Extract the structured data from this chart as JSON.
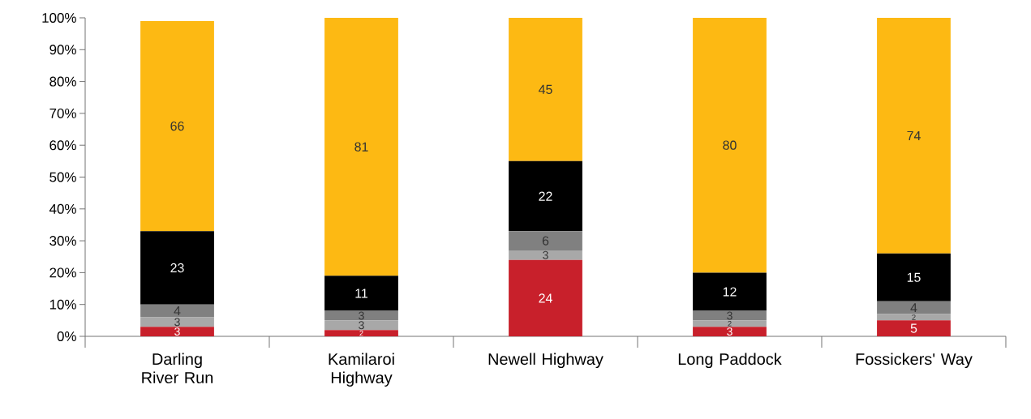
{
  "chart_data": {
    "type": "bar",
    "stacked": true,
    "data_labels": true,
    "categories": [
      "Darling River Run",
      "Kamilaroi Highway",
      "Newell Highway",
      "Long Paddock",
      "Fossickers' Way"
    ],
    "series": [
      {
        "color": "#c8202b",
        "values": [
          3,
          2,
          24,
          3,
          5
        ]
      },
      {
        "color": "#a8a8a8",
        "values": [
          3,
          3,
          3,
          2,
          2
        ]
      },
      {
        "color": "#808080",
        "values": [
          4,
          3,
          6,
          3,
          4
        ]
      },
      {
        "color": "#000000",
        "values": [
          23,
          11,
          22,
          12,
          15
        ]
      },
      {
        "color": "#fdb913",
        "values": [
          66,
          81,
          45,
          80,
          74
        ]
      }
    ],
    "ylim": [
      0,
      100
    ],
    "yticks": [
      {
        "value": 0,
        "label": "0%"
      },
      {
        "value": 10,
        "label": "10%"
      },
      {
        "value": 20,
        "label": "20%"
      },
      {
        "value": 30,
        "label": "30%"
      },
      {
        "value": 40,
        "label": "40%"
      },
      {
        "value": 50,
        "label": "50%"
      },
      {
        "value": 60,
        "label": "60%"
      },
      {
        "value": 70,
        "label": "70%"
      },
      {
        "value": 80,
        "label": "80%"
      },
      {
        "value": 90,
        "label": "90%"
      },
      {
        "value": 100,
        "label": "100%"
      }
    ],
    "grid": false
  }
}
